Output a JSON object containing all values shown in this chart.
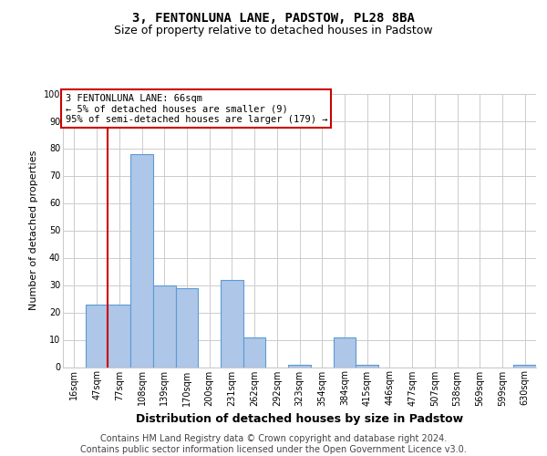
{
  "title1": "3, FENTONLUNA LANE, PADSTOW, PL28 8BA",
  "title2": "Size of property relative to detached houses in Padstow",
  "xlabel": "Distribution of detached houses by size in Padstow",
  "ylabel": "Number of detached properties",
  "footer1": "Contains HM Land Registry data © Crown copyright and database right 2024.",
  "footer2": "Contains public sector information licensed under the Open Government Licence v3.0.",
  "annotation_line1": "3 FENTONLUNA LANE: 66sqm",
  "annotation_line2": "← 5% of detached houses are smaller (9)",
  "annotation_line3": "95% of semi-detached houses are larger (179) →",
  "bin_labels": [
    "16sqm",
    "47sqm",
    "77sqm",
    "108sqm",
    "139sqm",
    "170sqm",
    "200sqm",
    "231sqm",
    "262sqm",
    "292sqm",
    "323sqm",
    "354sqm",
    "384sqm",
    "415sqm",
    "446sqm",
    "477sqm",
    "507sqm",
    "538sqm",
    "569sqm",
    "599sqm",
    "630sqm"
  ],
  "bar_heights": [
    0,
    23,
    23,
    78,
    30,
    29,
    0,
    32,
    11,
    0,
    1,
    0,
    11,
    1,
    0,
    0,
    0,
    0,
    0,
    0,
    1
  ],
  "bar_color": "#aec6e8",
  "bar_edge_color": "#5b9bd5",
  "property_line_index": 2,
  "ylim": [
    0,
    100
  ],
  "yticks": [
    0,
    10,
    20,
    30,
    40,
    50,
    60,
    70,
    80,
    90,
    100
  ],
  "annotation_box_color": "#cc0000",
  "property_line_color": "#cc0000",
  "grid_color": "#cccccc",
  "background_color": "#ffffff",
  "title1_fontsize": 10,
  "title2_fontsize": 9,
  "ylabel_fontsize": 8,
  "xlabel_fontsize": 9,
  "tick_fontsize": 7,
  "footer_fontsize": 7
}
